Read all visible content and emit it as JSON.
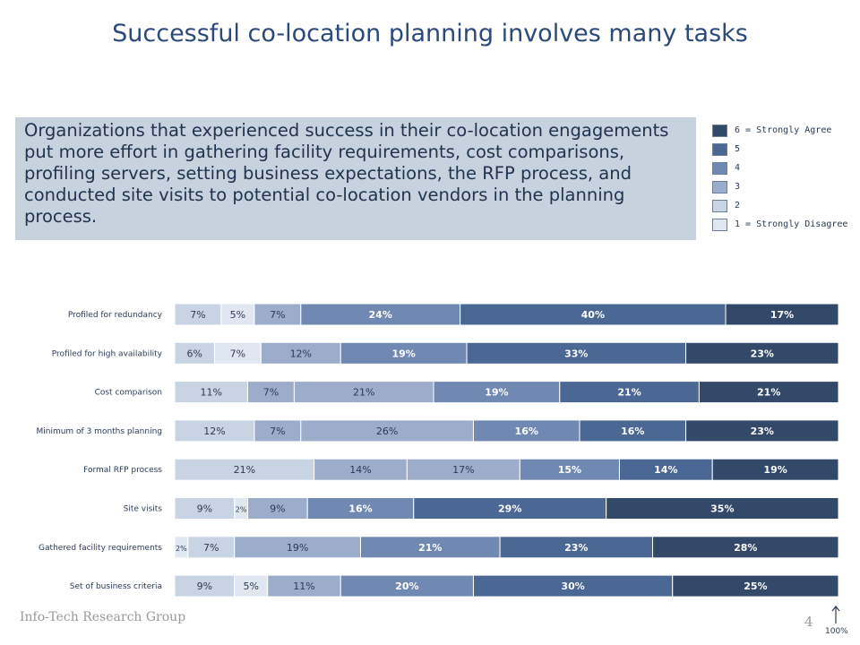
{
  "title": "Successful co-location planning involves many tasks",
  "summary": "Organizations that experienced success in their co-location engagements put more effort in gathering facility requirements, cost comparisons, profiling servers, setting business expectations, the RFP process, and conducted site visits to potential co-location vendors in the planning process.",
  "legend": [
    {
      "label": "6 = Strongly Agree",
      "color": "#33496a"
    },
    {
      "label": "5",
      "color": "#4b6894"
    },
    {
      "label": "4",
      "color": "#7089b2"
    },
    {
      "label": "3",
      "color": "#9badcb"
    },
    {
      "label": "2",
      "color": "#c8d3e3"
    },
    {
      "label": "1 = Strongly Disagree",
      "color": "#e1e7f0"
    }
  ],
  "footer": {
    "brand": "Info-Tech Research Group",
    "page": "4",
    "axis_label": "100%"
  },
  "chart_data": {
    "type": "bar",
    "orientation": "horizontal",
    "stacked": true,
    "categories": [
      "Profiled for redundancy",
      "Profiled for high availability",
      "Cost comparison",
      "Minimum of 3 months planning",
      "Formal RFP process",
      "Site visits",
      "Gathered facility requirements",
      "Set of business criteria"
    ],
    "series": [
      {
        "name": "1 = Strongly Disagree",
        "color": "#e1e7f0",
        "values": [
          0,
          0,
          0,
          0,
          0,
          0,
          2,
          0
        ]
      },
      {
        "name": "2",
        "color": "#c8d3e3",
        "values": [
          7,
          6,
          11,
          12,
          21,
          9,
          7,
          9
        ]
      },
      {
        "name": "",
        "color": "#e1e7f0",
        "values": [
          5,
          7,
          0,
          0,
          0,
          2,
          0,
          5
        ]
      },
      {
        "name": "3",
        "color": "#9badcb",
        "values": [
          7,
          12,
          7,
          7,
          14,
          9,
          19,
          11
        ]
      },
      {
        "name": "",
        "color": "#9badcb",
        "values": [
          0,
          0,
          21,
          26,
          17,
          0,
          0,
          0
        ]
      },
      {
        "name": "4",
        "color": "#7089b2",
        "values": [
          24,
          19,
          19,
          16,
          15,
          16,
          21,
          20
        ]
      },
      {
        "name": "5",
        "color": "#4b6894",
        "values": [
          40,
          33,
          21,
          16,
          14,
          29,
          23,
          30
        ]
      },
      {
        "name": "6 = Strongly Agree",
        "color": "#33496a",
        "values": [
          17,
          23,
          21,
          23,
          19,
          35,
          28,
          25
        ]
      }
    ],
    "labels": [
      [
        "",
        "7%",
        "5%",
        "7%",
        "",
        "24%",
        "40%",
        "17%"
      ],
      [
        "",
        "6%",
        "7%",
        "12%",
        "",
        "19%",
        "33%",
        "23%"
      ],
      [
        "",
        "11%",
        "",
        "7%",
        "21%",
        "19%",
        "21%",
        "21%"
      ],
      [
        "",
        "12%",
        "",
        "7%",
        "26%",
        "16%",
        "16%",
        "23%"
      ],
      [
        "",
        "21%",
        "",
        "14%",
        "17%",
        "15%",
        "14%",
        "19%"
      ],
      [
        "",
        "9%",
        "2%",
        "9%",
        "",
        "16%",
        "29%",
        "35%"
      ],
      [
        "2%",
        "7%",
        "",
        "19%",
        "",
        "21%",
        "23%",
        "28%"
      ],
      [
        "",
        "9%",
        "5%",
        "11%",
        "",
        "20%",
        "30%",
        "25%"
      ]
    ],
    "xlim": [
      0,
      100
    ]
  }
}
